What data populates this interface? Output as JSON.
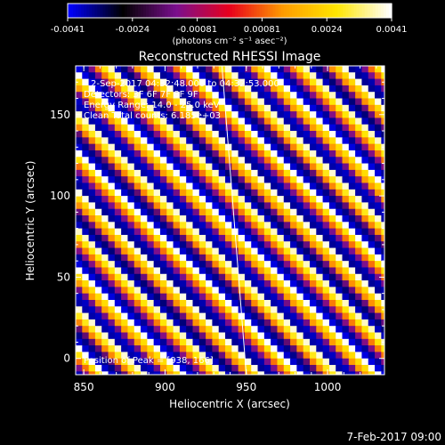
{
  "chart_data": {
    "type": "heatmap",
    "title": "Reconstructed RHESSI Image",
    "xlabel": "Heliocentric X (arcsec)",
    "ylabel": "Heliocentric Y (arcsec)",
    "xlim": [
      845,
      1035
    ],
    "ylim": [
      -10,
      180
    ],
    "x_ticks": [
      850,
      900,
      950,
      1000
    ],
    "y_ticks": [
      0,
      50,
      100,
      150
    ],
    "colorbar": {
      "min": -0.0041,
      "max": 0.0041,
      "ticks": [
        "-0.0041",
        "-0.0024",
        "-0.00081",
        "0.00081",
        "0.0024",
        "0.0041"
      ],
      "unit_label": "(photons cm⁻² s⁻¹ asec⁻²)",
      "colors": [
        "#0000ff",
        "#000000",
        "#7a0f8e",
        "#e8001c",
        "#ff9c00",
        "#ffe600",
        "#ffffff"
      ]
    },
    "pattern": {
      "description_values": "diagonal stripes of alternating positive/negative flux",
      "pixel_size_arcsec": 4,
      "stripe_period_pixels": 6,
      "stripe_slope": 1
    },
    "annotations": [
      "2-Sep-2017 04:32:48.000 to 04:32:53.000",
      "Detectors: 3F 6F 7F 8F 9F",
      "Energy Range: 14.0 - 25.0 keV",
      "Clean     Total counts: 6.185e+03",
      "Position of Peak = [938, 166]"
    ],
    "footer_date": "7-Feb-2017 09:00",
    "limb_line": [
      [
        935,
        180
      ],
      [
        950,
        -10
      ]
    ]
  }
}
